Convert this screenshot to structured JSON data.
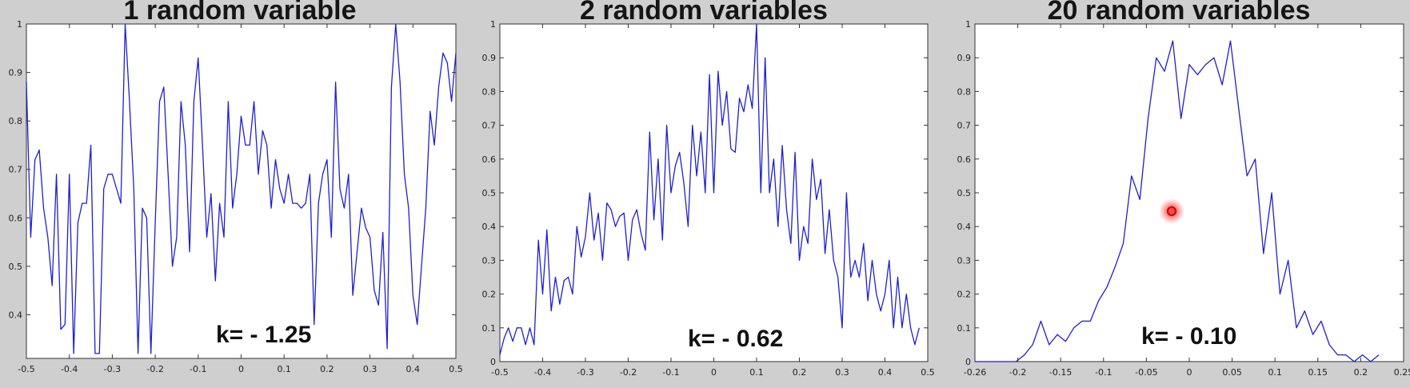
{
  "chart_data": [
    {
      "type": "line",
      "title": "1 random variable",
      "annotation": "k= - 1.25",
      "xlim": [
        -0.5,
        0.5
      ],
      "ylim": [
        0.31,
        1.0
      ],
      "xticks": [
        "-0.5",
        "-0.4",
        "-0.3",
        "-0.2",
        "-0.1",
        "0",
        "0.1",
        "0.2",
        "0.3",
        "0.4",
        "0.5"
      ],
      "yticks": [
        "0.4",
        "0.5",
        "0.6",
        "0.7",
        "0.8",
        "0.9",
        "1"
      ],
      "color": "#1f1fd0",
      "x": [
        -0.5,
        -0.49,
        -0.48,
        -0.47,
        -0.46,
        -0.45,
        -0.44,
        -0.43,
        -0.42,
        -0.41,
        -0.4,
        -0.39,
        -0.38,
        -0.37,
        -0.36,
        -0.35,
        -0.34,
        -0.33,
        -0.32,
        -0.31,
        -0.3,
        -0.29,
        -0.28,
        -0.27,
        -0.26,
        -0.25,
        -0.24,
        -0.23,
        -0.22,
        -0.21,
        -0.2,
        -0.19,
        -0.18,
        -0.17,
        -0.16,
        -0.15,
        -0.14,
        -0.13,
        -0.12,
        -0.11,
        -0.1,
        -0.09,
        -0.08,
        -0.07,
        -0.06,
        -0.05,
        -0.04,
        -0.03,
        -0.02,
        -0.01,
        0,
        0.01,
        0.02,
        0.03,
        0.04,
        0.05,
        0.06,
        0.07,
        0.08,
        0.09,
        0.1,
        0.11,
        0.12,
        0.13,
        0.14,
        0.15,
        0.16,
        0.17,
        0.18,
        0.19,
        0.2,
        0.21,
        0.22,
        0.23,
        0.24,
        0.25,
        0.26,
        0.27,
        0.28,
        0.29,
        0.3,
        0.31,
        0.32,
        0.33,
        0.34,
        0.35,
        0.36,
        0.37,
        0.38,
        0.39,
        0.4,
        0.41,
        0.42,
        0.43,
        0.44,
        0.45,
        0.46,
        0.47,
        0.48,
        0.49,
        0.5
      ],
      "y": [
        0.88,
        0.56,
        0.72,
        0.74,
        0.62,
        0.56,
        0.46,
        0.69,
        0.37,
        0.38,
        0.69,
        0.32,
        0.59,
        0.63,
        0.63,
        0.75,
        0.32,
        0.32,
        0.66,
        0.69,
        0.69,
        0.66,
        0.63,
        1.0,
        0.84,
        0.66,
        0.32,
        0.62,
        0.6,
        0.32,
        0.59,
        0.84,
        0.87,
        0.69,
        0.5,
        0.56,
        0.84,
        0.75,
        0.53,
        0.84,
        0.93,
        0.75,
        0.56,
        0.65,
        0.47,
        0.63,
        0.56,
        0.84,
        0.62,
        0.69,
        0.81,
        0.75,
        0.75,
        0.84,
        0.69,
        0.78,
        0.75,
        0.62,
        0.72,
        0.66,
        0.63,
        0.69,
        0.63,
        0.63,
        0.62,
        0.63,
        0.69,
        0.38,
        0.63,
        0.69,
        0.72,
        0.56,
        0.88,
        0.66,
        0.62,
        0.69,
        0.44,
        0.53,
        0.62,
        0.58,
        0.56,
        0.45,
        0.42,
        0.57,
        0.33,
        0.87,
        1.0,
        0.88,
        0.69,
        0.62,
        0.44,
        0.38,
        0.5,
        0.62,
        0.82,
        0.75,
        0.87,
        0.94,
        0.92,
        0.84,
        0.94
      ]
    },
    {
      "type": "line",
      "title": "2 random variables",
      "annotation": "k= - 0.62",
      "xlim": [
        -0.5,
        0.5
      ],
      "ylim": [
        0,
        1.0
      ],
      "xticks": [
        "-0.5",
        "-0.4",
        "-0.3",
        "-0.2",
        "-0.1",
        "0",
        "0.1",
        "0.2",
        "0.3",
        "0.4",
        "0.5"
      ],
      "yticks": [
        "0",
        "0.1",
        "0.2",
        "0.3",
        "0.4",
        "0.5",
        "0.6",
        "0.7",
        "0.8",
        "0.9",
        "1"
      ],
      "color": "#1f1fd0",
      "x": [
        -0.5,
        -0.49,
        -0.48,
        -0.47,
        -0.46,
        -0.45,
        -0.44,
        -0.43,
        -0.42,
        -0.41,
        -0.4,
        -0.39,
        -0.38,
        -0.37,
        -0.36,
        -0.35,
        -0.34,
        -0.33,
        -0.32,
        -0.31,
        -0.3,
        -0.29,
        -0.28,
        -0.27,
        -0.26,
        -0.25,
        -0.24,
        -0.23,
        -0.22,
        -0.21,
        -0.2,
        -0.19,
        -0.18,
        -0.17,
        -0.16,
        -0.15,
        -0.14,
        -0.13,
        -0.12,
        -0.11,
        -0.1,
        -0.09,
        -0.08,
        -0.07,
        -0.06,
        -0.05,
        -0.04,
        -0.03,
        -0.02,
        -0.01,
        0,
        0.01,
        0.02,
        0.03,
        0.04,
        0.05,
        0.06,
        0.07,
        0.08,
        0.09,
        0.1,
        0.11,
        0.12,
        0.13,
        0.14,
        0.15,
        0.16,
        0.17,
        0.18,
        0.19,
        0.2,
        0.21,
        0.22,
        0.23,
        0.24,
        0.25,
        0.26,
        0.27,
        0.28,
        0.29,
        0.3,
        0.31,
        0.32,
        0.33,
        0.34,
        0.35,
        0.36,
        0.37,
        0.38,
        0.39,
        0.4,
        0.41,
        0.42,
        0.43,
        0.44,
        0.45,
        0.46,
        0.47,
        0.48
      ],
      "y": [
        0.02,
        0.07,
        0.1,
        0.06,
        0.1,
        0.1,
        0.05,
        0.1,
        0.05,
        0.36,
        0.2,
        0.39,
        0.15,
        0.25,
        0.17,
        0.24,
        0.25,
        0.2,
        0.4,
        0.31,
        0.37,
        0.5,
        0.36,
        0.44,
        0.3,
        0.47,
        0.45,
        0.4,
        0.43,
        0.44,
        0.3,
        0.42,
        0.45,
        0.38,
        0.33,
        0.68,
        0.42,
        0.6,
        0.36,
        0.7,
        0.5,
        0.58,
        0.62,
        0.53,
        0.4,
        0.7,
        0.55,
        0.68,
        0.5,
        0.85,
        0.5,
        0.86,
        0.7,
        0.8,
        0.63,
        0.62,
        0.78,
        0.74,
        0.82,
        0.75,
        1.0,
        0.5,
        0.9,
        0.5,
        0.6,
        0.4,
        0.64,
        0.45,
        0.35,
        0.62,
        0.3,
        0.4,
        0.35,
        0.6,
        0.48,
        0.54,
        0.32,
        0.45,
        0.3,
        0.25,
        0.1,
        0.5,
        0.25,
        0.3,
        0.25,
        0.35,
        0.18,
        0.3,
        0.2,
        0.15,
        0.2,
        0.3,
        0.1,
        0.25,
        0.1,
        0.2,
        0.1,
        0.05,
        0.1
      ]
    },
    {
      "type": "line",
      "title": "20 random variables",
      "annotation": "k= - 0.10",
      "xlim": [
        -0.26,
        0.26
      ],
      "ylim": [
        0,
        1.0
      ],
      "xticks": [
        "-0.26",
        "-0.2",
        "-0.15",
        "-0.1",
        "-0.05",
        "0",
        "0.05",
        "0.1",
        "0.15",
        "0.2",
        "0.25"
      ],
      "yticks": [
        "0",
        "0.1",
        "0.2",
        "0.3",
        "0.4",
        "0.5",
        "0.6",
        "0.7",
        "0.8",
        "0.9",
        "1"
      ],
      "color": "#1f1fd0",
      "x": [
        -0.26,
        -0.25,
        -0.24,
        -0.23,
        -0.22,
        -0.21,
        -0.2,
        -0.19,
        -0.18,
        -0.17,
        -0.16,
        -0.15,
        -0.14,
        -0.13,
        -0.12,
        -0.11,
        -0.1,
        -0.09,
        -0.08,
        -0.07,
        -0.06,
        -0.05,
        -0.04,
        -0.03,
        -0.02,
        -0.01,
        0,
        0.01,
        0.02,
        0.03,
        0.04,
        0.05,
        0.06,
        0.07,
        0.08,
        0.09,
        0.1,
        0.11,
        0.12,
        0.13,
        0.14,
        0.15,
        0.16,
        0.17,
        0.18,
        0.19,
        0.2,
        0.21,
        0.22,
        0.23
      ],
      "y": [
        0,
        0,
        0,
        0,
        0,
        0,
        0.02,
        0.05,
        0.12,
        0.05,
        0.08,
        0.06,
        0.1,
        0.12,
        0.12,
        0.18,
        0.22,
        0.28,
        0.35,
        0.55,
        0.48,
        0.72,
        0.9,
        0.86,
        0.95,
        0.72,
        0.88,
        0.85,
        0.88,
        0.9,
        0.82,
        0.95,
        0.75,
        0.55,
        0.6,
        0.32,
        0.5,
        0.2,
        0.3,
        0.1,
        0.15,
        0.08,
        0.12,
        0.05,
        0.02,
        0.02,
        0,
        0.02,
        0,
        0.02
      ]
    }
  ]
}
